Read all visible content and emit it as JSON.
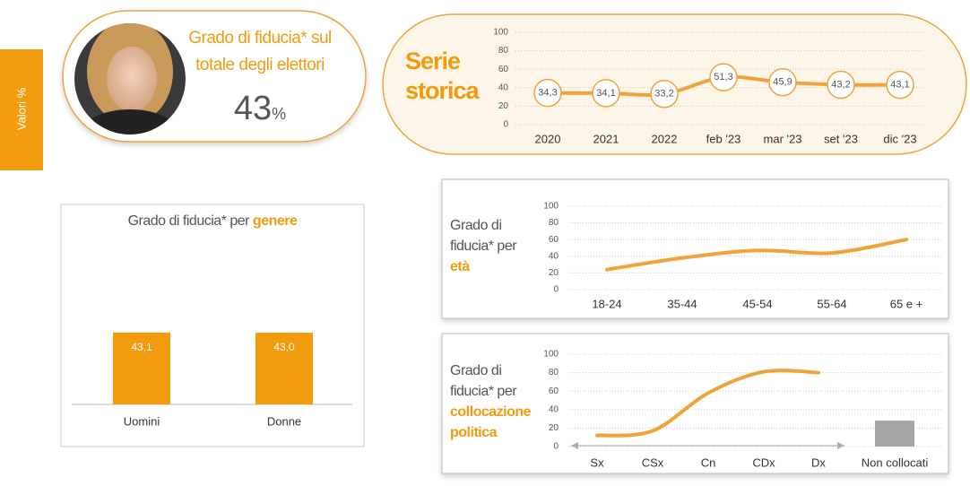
{
  "side_label": "Valori %",
  "kpi": {
    "title": "Grado di fiducia* sul totale degli elettori",
    "value": 43,
    "unit": "%"
  },
  "chart_data": [
    {
      "type": "line",
      "title": "Serie storica",
      "categories": [
        "2020",
        "2021",
        "2022",
        "feb '23",
        "mar '23",
        "set '23",
        "dic '23"
      ],
      "values": [
        34.3,
        34.1,
        33.2,
        51.3,
        45.9,
        43.2,
        43.1
      ],
      "value_labels": [
        "34,3",
        "34,1",
        "33,2",
        "51,3",
        "45,9",
        "43,2",
        "43,1"
      ],
      "color": "#f0a33b",
      "ylim": [
        0,
        100
      ],
      "yticks": [
        0,
        20,
        40,
        60,
        80,
        100
      ],
      "grid": true,
      "markers": true
    },
    {
      "type": "bar",
      "title": "Grado di fiducia* per",
      "title_highlight": "genere",
      "categories": [
        "Uomini",
        "Donne"
      ],
      "values": [
        43.1,
        43.0
      ],
      "value_labels": [
        "43,1",
        "43,0"
      ],
      "color": "#f29b0c"
    },
    {
      "type": "line",
      "title": "Grado di fiducia* per",
      "title_highlight": "età",
      "categories": [
        "18-24",
        "35-44",
        "45-54",
        "55-64",
        "65 e +"
      ],
      "values": [
        24,
        38,
        47,
        44,
        60
      ],
      "color": "#f0a33b",
      "ylim": [
        0,
        100
      ],
      "yticks": [
        0,
        20,
        40,
        60,
        80,
        100
      ],
      "grid": true
    },
    {
      "type": "combo",
      "title": "Grado di fiducia* per",
      "title_highlight": "collocazione politica",
      "categories": [
        "Sx",
        "CSx",
        "Cn",
        "CDx",
        "Dx",
        "Non collocati"
      ],
      "series": [
        {
          "type": "line",
          "color": "#f0a33b",
          "values": [
            12,
            17,
            58,
            81,
            80,
            null
          ]
        },
        {
          "type": "bar",
          "color": "#a6a6a6",
          "values": [
            null,
            null,
            null,
            null,
            null,
            28
          ]
        }
      ],
      "ylim": [
        0,
        100
      ],
      "yticks": [
        0,
        20,
        40,
        60,
        80,
        100
      ],
      "grid": true
    }
  ]
}
